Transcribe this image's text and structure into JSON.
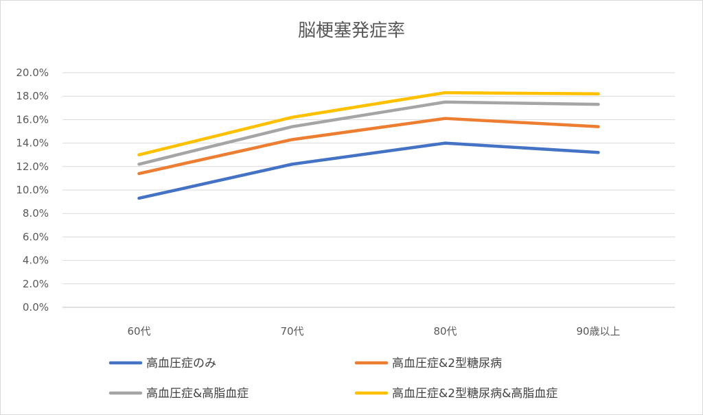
{
  "chart_data": {
    "type": "line",
    "title": "脳梗塞発症率",
    "xlabel": "",
    "ylabel": "",
    "categories": [
      "60代",
      "70代",
      "80代",
      "90歳以上"
    ],
    "ylim": [
      0,
      20
    ],
    "y_ticks": [
      "0.0%",
      "2.0%",
      "4.0%",
      "6.0%",
      "8.0%",
      "10.0%",
      "12.0%",
      "14.0%",
      "16.0%",
      "18.0%",
      "20.0%"
    ],
    "y_tick_values": [
      0,
      2,
      4,
      6,
      8,
      10,
      12,
      14,
      16,
      18,
      20
    ],
    "grid": true,
    "legend_position": "bottom",
    "series": [
      {
        "name": "高血圧症のみ",
        "color": "#4472C4",
        "values": [
          9.3,
          12.2,
          14.0,
          13.2
        ]
      },
      {
        "name": "高血圧症&2型糖尿病",
        "color": "#ED7D31",
        "values": [
          11.4,
          14.3,
          16.1,
          15.4
        ]
      },
      {
        "name": "高血圧症&高脂血症",
        "color": "#A5A5A5",
        "values": [
          12.2,
          15.4,
          17.5,
          17.3
        ]
      },
      {
        "name": "高血圧症&2型糖尿病&高脂血症",
        "color": "#FFC000",
        "values": [
          13.0,
          16.2,
          18.3,
          18.2
        ]
      }
    ]
  }
}
